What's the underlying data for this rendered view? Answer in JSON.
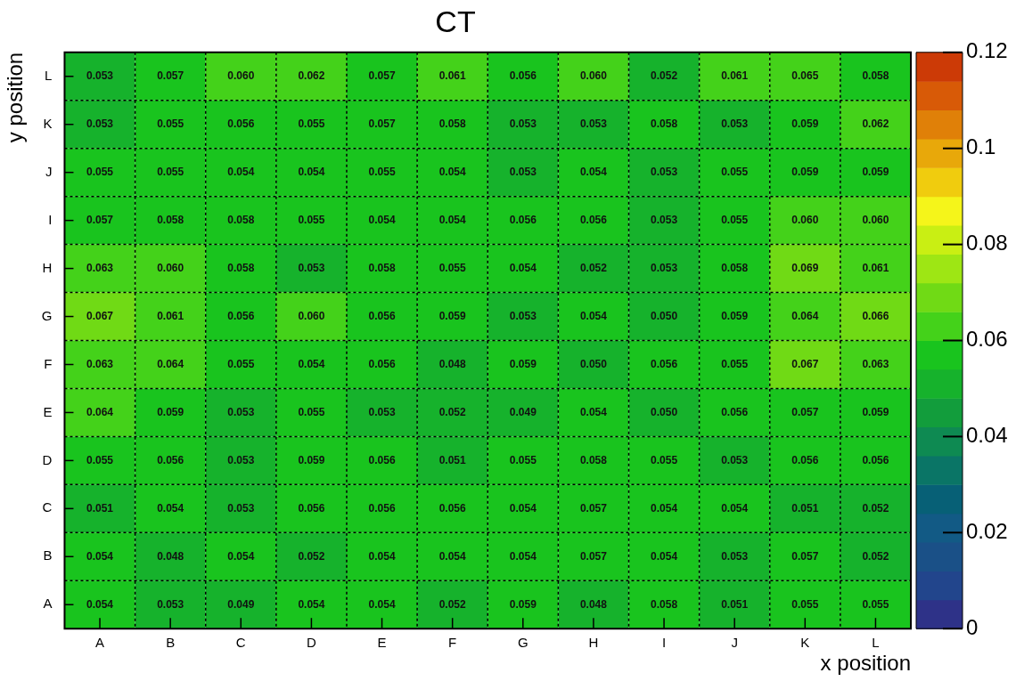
{
  "chart_data": {
    "type": "heatmap",
    "title": "CT",
    "xlabel": "x position",
    "ylabel": "y position",
    "categories": [
      "A",
      "B",
      "C",
      "D",
      "E",
      "F",
      "G",
      "H",
      "I",
      "J",
      "K",
      "L"
    ],
    "y_categories": [
      "L",
      "K",
      "J",
      "I",
      "H",
      "G",
      "F",
      "E",
      "D",
      "C",
      "B",
      "A"
    ],
    "cells": [
      [
        0.053,
        0.057,
        0.06,
        0.062,
        0.057,
        0.061,
        0.056,
        0.06,
        0.052,
        0.061,
        0.065,
        0.058
      ],
      [
        0.053,
        0.055,
        0.056,
        0.055,
        0.057,
        0.058,
        0.053,
        0.053,
        0.058,
        0.053,
        0.059,
        0.062
      ],
      [
        0.055,
        0.055,
        0.054,
        0.054,
        0.055,
        0.054,
        0.053,
        0.054,
        0.053,
        0.055,
        0.059,
        0.059
      ],
      [
        0.057,
        0.058,
        0.058,
        0.055,
        0.054,
        0.054,
        0.056,
        0.056,
        0.053,
        0.055,
        0.06,
        0.06
      ],
      [
        0.063,
        0.06,
        0.058,
        0.053,
        0.058,
        0.055,
        0.054,
        0.052,
        0.053,
        0.058,
        0.069,
        0.061
      ],
      [
        0.067,
        0.061,
        0.056,
        0.06,
        0.056,
        0.059,
        0.053,
        0.054,
        0.05,
        0.059,
        0.064,
        0.066
      ],
      [
        0.063,
        0.064,
        0.055,
        0.054,
        0.056,
        0.048,
        0.059,
        0.05,
        0.056,
        0.055,
        0.067,
        0.063
      ],
      [
        0.064,
        0.059,
        0.053,
        0.055,
        0.053,
        0.052,
        0.049,
        0.054,
        0.05,
        0.056,
        0.057,
        0.059
      ],
      [
        0.055,
        0.056,
        0.053,
        0.059,
        0.056,
        0.051,
        0.055,
        0.058,
        0.055,
        0.053,
        0.056,
        0.056
      ],
      [
        0.051,
        0.054,
        0.053,
        0.056,
        0.056,
        0.056,
        0.054,
        0.057,
        0.054,
        0.054,
        0.051,
        0.052
      ],
      [
        0.054,
        0.048,
        0.054,
        0.052,
        0.054,
        0.054,
        0.054,
        0.057,
        0.054,
        0.053,
        0.057,
        0.052
      ],
      [
        0.054,
        0.053,
        0.049,
        0.054,
        0.054,
        0.052,
        0.059,
        0.048,
        0.058,
        0.051,
        0.055,
        0.055
      ]
    ],
    "cell_labels": [
      [
        "0.053",
        "0.057",
        "0.060",
        "0.062",
        "0.057",
        "0.061",
        "0.056",
        "0.060",
        "0.052",
        "0.061",
        "0.065",
        "0.058"
      ],
      [
        "0.053",
        "0.055",
        "0.056",
        "0.055",
        "0.057",
        "0.058",
        "0.053",
        "0.053",
        "0.058",
        "0.053",
        "0.059",
        "0.062"
      ],
      [
        "0.055",
        "0.055",
        "0.054",
        "0.054",
        "0.055",
        "0.054",
        "0.053",
        "0.054",
        "0.053",
        "0.055",
        "0.059",
        "0.059"
      ],
      [
        "0.057",
        "0.058",
        "0.058",
        "0.055",
        "0.054",
        "0.054",
        "0.056",
        "0.056",
        "0.053",
        "0.055",
        "0.060",
        "0.060"
      ],
      [
        "0.063",
        "0.060",
        "0.058",
        "0.053",
        "0.058",
        "0.055",
        "0.054",
        "0.052",
        "0.053",
        "0.058",
        "0.069",
        "0.061"
      ],
      [
        "0.067",
        "0.061",
        "0.056",
        "0.060",
        "0.056",
        "0.059",
        "0.053",
        "0.054",
        "0.050",
        "0.059",
        "0.064",
        "0.066"
      ],
      [
        "0.063",
        "0.064",
        "0.055",
        "0.054",
        "0.056",
        "0.048",
        "0.059",
        "0.050",
        "0.056",
        "0.055",
        "0.067",
        "0.063"
      ],
      [
        "0.064",
        "0.059",
        "0.053",
        "0.055",
        "0.053",
        "0.052",
        "0.049",
        "0.054",
        "0.050",
        "0.056",
        "0.057",
        "0.059"
      ],
      [
        "0.055",
        "0.056",
        "0.053",
        "0.059",
        "0.056",
        "0.051",
        "0.055",
        "0.058",
        "0.055",
        "0.053",
        "0.056",
        "0.056"
      ],
      [
        "0.051",
        "0.054",
        "0.053",
        "0.056",
        "0.056",
        "0.056",
        "0.054",
        "0.057",
        "0.054",
        "0.054",
        "0.051",
        "0.052"
      ],
      [
        "0.054",
        "0.048",
        "0.054",
        "0.052",
        "0.054",
        "0.054",
        "0.054",
        "0.057",
        "0.054",
        "0.053",
        "0.057",
        "0.052"
      ],
      [
        "0.054",
        "0.053",
        "0.049",
        "0.054",
        "0.054",
        "0.052",
        "0.059",
        "0.048",
        "0.058",
        "0.051",
        "0.055",
        "0.055"
      ]
    ],
    "clim": [
      0,
      0.12
    ],
    "cticks": [
      0,
      0.02,
      0.04,
      0.06,
      0.08,
      0.1,
      0.12
    ]
  }
}
